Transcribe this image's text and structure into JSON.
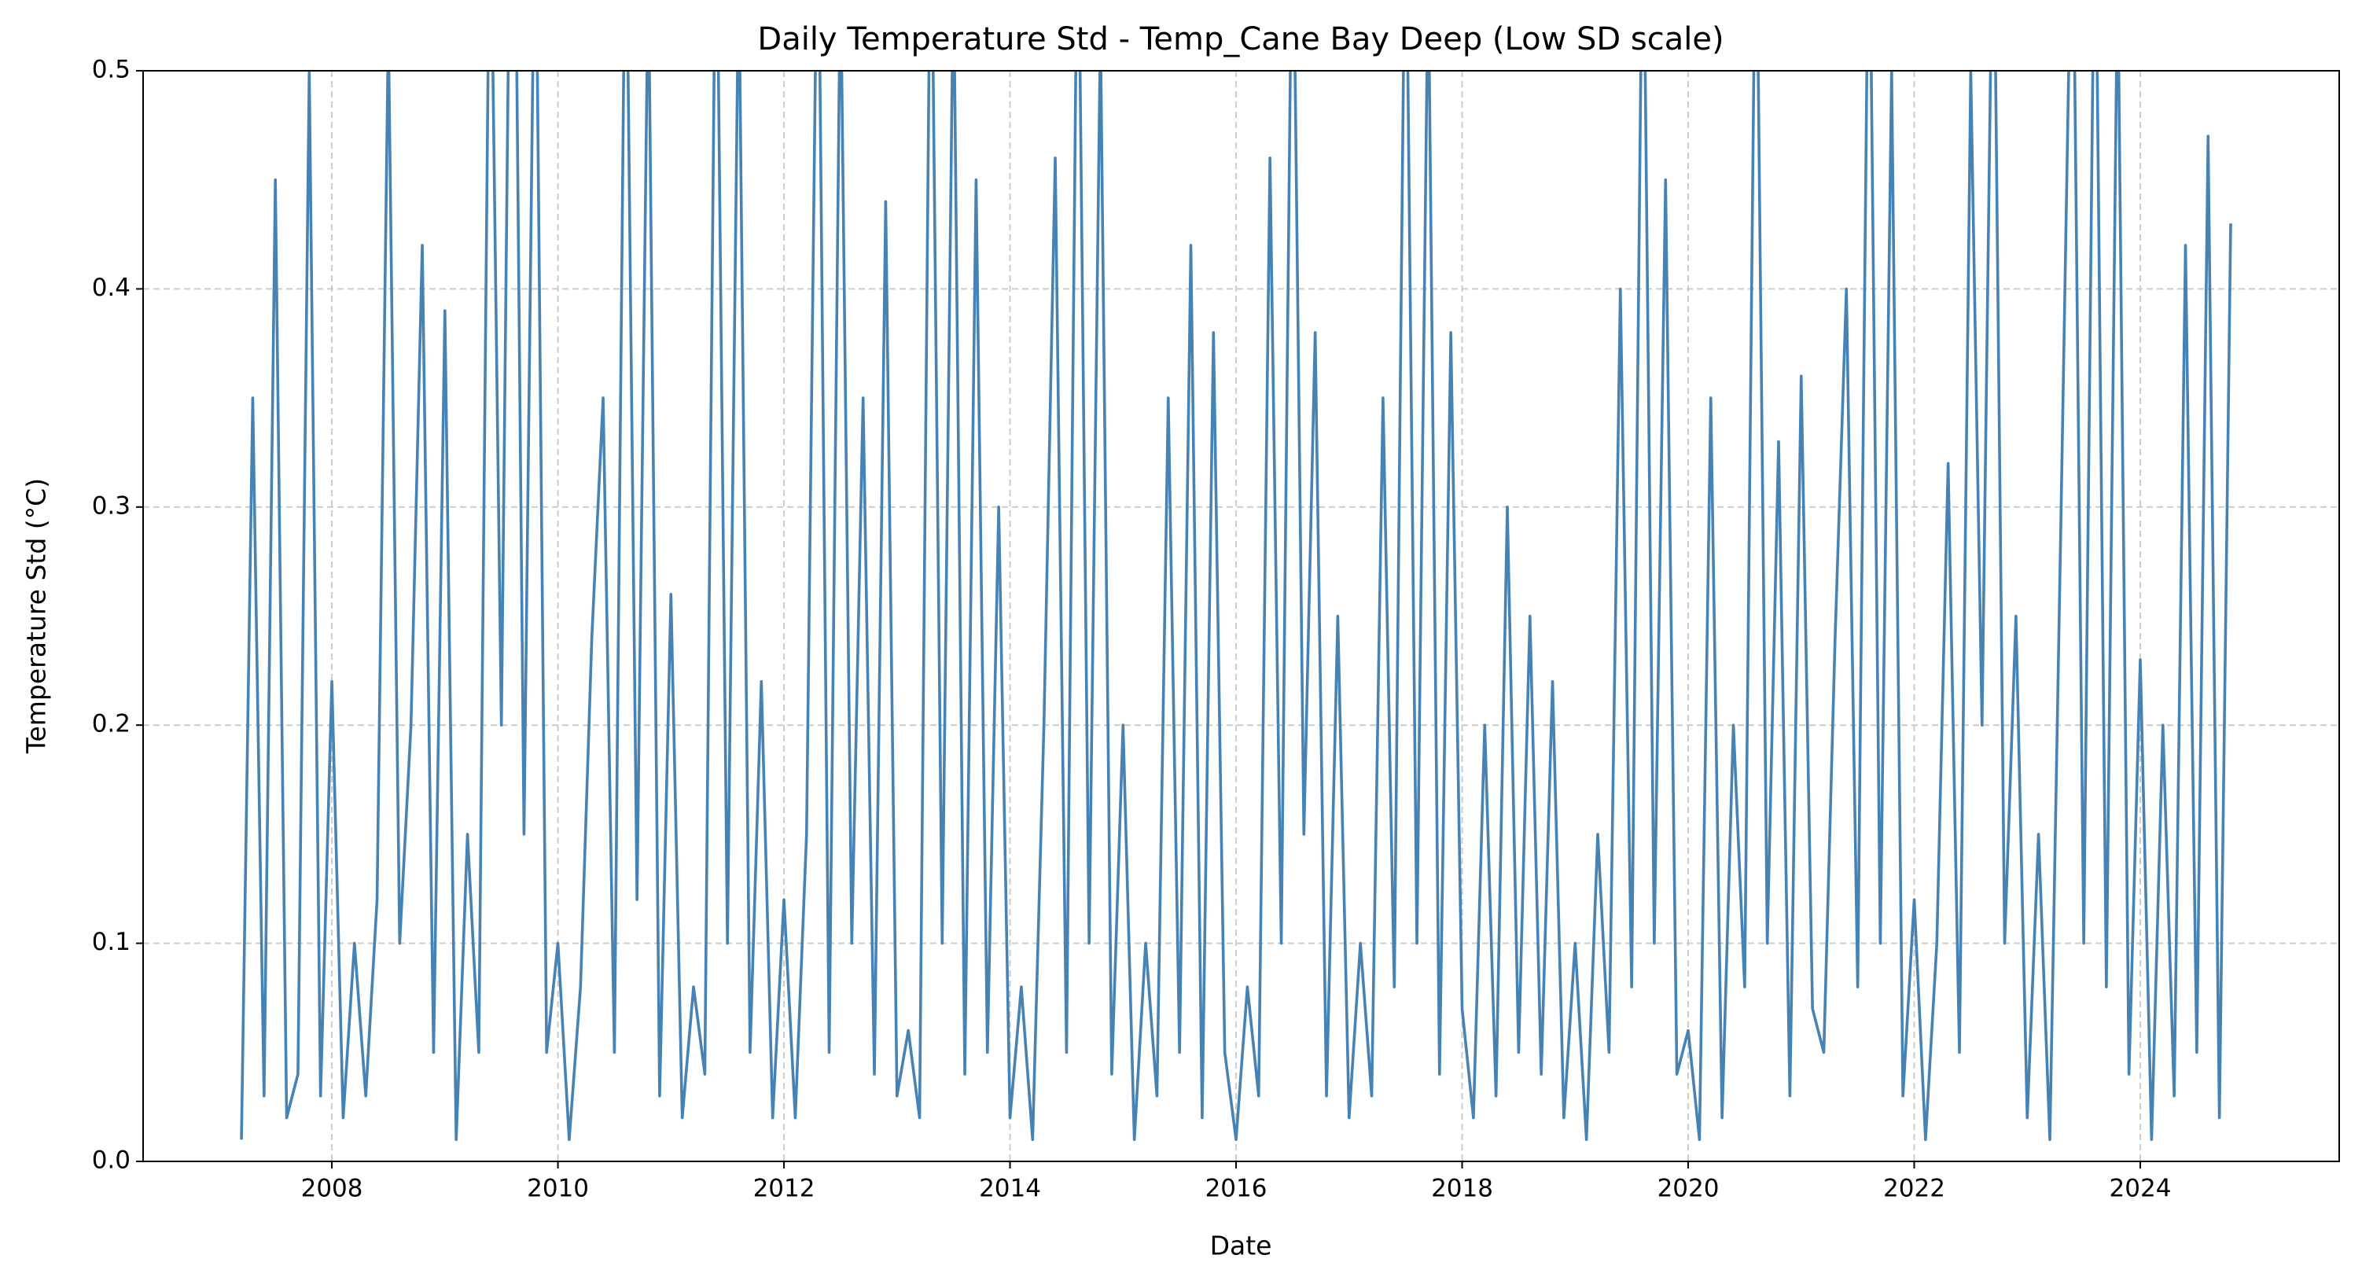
{
  "chart_data": {
    "type": "line",
    "title": "Daily Temperature Std - Temp_Cane Bay Deep (Low SD scale)",
    "x_label": "Date",
    "y_label": "Temperature Std (°C)",
    "color": "#4682b4",
    "grid": true,
    "xlim": [
      2006.33,
      2025.76
    ],
    "xticks": [
      2008,
      2010,
      2012,
      2014,
      2016,
      2018,
      2020,
      2022,
      2024
    ],
    "ylim": [
      0,
      0.5
    ],
    "yticks": [
      {
        "value": 0,
        "label": "0.0"
      },
      0.1,
      0.2,
      0.3,
      0.4,
      0.5
    ],
    "x": [
      2007.2,
      2007.3,
      2007.4,
      2007.5,
      2007.6,
      2007.7,
      2007.8,
      2007.9,
      2008.0,
      2008.1,
      2008.2,
      2008.3,
      2008.4,
      2008.5,
      2008.6,
      2008.7,
      2008.8,
      2008.9,
      2009.0,
      2009.1,
      2009.2,
      2009.3,
      2009.4,
      2009.5,
      2009.6,
      2009.7,
      2009.8,
      2009.9,
      2010.0,
      2010.1,
      2010.2,
      2010.3,
      2010.4,
      2010.5,
      2010.6,
      2010.7,
      2010.8,
      2010.9,
      2011.0,
      2011.1,
      2011.2,
      2011.3,
      2011.4,
      2011.5,
      2011.6,
      2011.7,
      2011.8,
      2011.9,
      2012.0,
      2012.1,
      2012.2,
      2012.3,
      2012.4,
      2012.5,
      2012.6,
      2012.7,
      2012.8,
      2012.9,
      2013.0,
      2013.1,
      2013.2,
      2013.3,
      2013.4,
      2013.5,
      2013.6,
      2013.7,
      2013.8,
      2013.9,
      2014.0,
      2014.1,
      2014.2,
      2014.3,
      2014.4,
      2014.5,
      2014.6,
      2014.7,
      2014.8,
      2014.9,
      2015.0,
      2015.1,
      2015.2,
      2015.3,
      2015.4,
      2015.5,
      2015.6,
      2015.7,
      2015.8,
      2015.9,
      2016.0,
      2016.1,
      2016.2,
      2016.3,
      2016.4,
      2016.5,
      2016.6,
      2016.7,
      2016.8,
      2016.9,
      2017.0,
      2017.1,
      2017.2,
      2017.3,
      2017.4,
      2017.5,
      2017.6,
      2017.7,
      2017.8,
      2017.9,
      2018.0,
      2018.1,
      2018.2,
      2018.3,
      2018.4,
      2018.5,
      2018.6,
      2018.7,
      2018.8,
      2018.9,
      2019.0,
      2019.1,
      2019.2,
      2019.3,
      2019.4,
      2019.5,
      2019.6,
      2019.7,
      2019.8,
      2019.9,
      2020.0,
      2020.1,
      2020.2,
      2020.3,
      2020.4,
      2020.5,
      2020.6,
      2020.7,
      2020.8,
      2020.9,
      2021.0,
      2021.1,
      2021.2,
      2021.3,
      2021.4,
      2021.5,
      2021.6,
      2021.7,
      2021.8,
      2021.9,
      2022.0,
      2022.1,
      2022.2,
      2022.3,
      2022.4,
      2022.5,
      2022.6,
      2022.7,
      2022.8,
      2022.9,
      2023.0,
      2023.1,
      2023.2,
      2023.3,
      2023.4,
      2023.5,
      2023.6,
      2023.7,
      2023.8,
      2023.9,
      2024.0,
      2024.1,
      2024.2,
      2024.3,
      2024.4,
      2024.5,
      2024.6,
      2024.7,
      2024.8
    ],
    "values": [
      0.01,
      0.35,
      0.03,
      0.45,
      0.02,
      0.04,
      0.5,
      0.03,
      0.22,
      0.02,
      0.1,
      0.03,
      0.12,
      0.52,
      0.1,
      0.2,
      0.42,
      0.05,
      0.39,
      0.01,
      0.15,
      0.05,
      0.6,
      0.2,
      0.7,
      0.15,
      0.6,
      0.05,
      0.1,
      0.01,
      0.08,
      0.24,
      0.35,
      0.05,
      0.6,
      0.12,
      0.55,
      0.03,
      0.26,
      0.02,
      0.08,
      0.04,
      0.6,
      0.1,
      0.55,
      0.05,
      0.22,
      0.02,
      0.12,
      0.02,
      0.15,
      0.6,
      0.05,
      0.55,
      0.1,
      0.35,
      0.04,
      0.44,
      0.03,
      0.06,
      0.02,
      0.6,
      0.1,
      0.55,
      0.04,
      0.45,
      0.05,
      0.3,
      0.02,
      0.08,
      0.01,
      0.2,
      0.46,
      0.05,
      0.6,
      0.1,
      0.52,
      0.04,
      0.2,
      0.01,
      0.1,
      0.03,
      0.35,
      0.05,
      0.42,
      0.02,
      0.38,
      0.05,
      0.01,
      0.08,
      0.03,
      0.46,
      0.1,
      0.6,
      0.15,
      0.38,
      0.03,
      0.25,
      0.02,
      0.1,
      0.03,
      0.35,
      0.08,
      0.6,
      0.1,
      0.55,
      0.04,
      0.38,
      0.07,
      0.02,
      0.2,
      0.03,
      0.3,
      0.05,
      0.25,
      0.04,
      0.22,
      0.02,
      0.1,
      0.01,
      0.15,
      0.05,
      0.4,
      0.08,
      0.6,
      0.1,
      0.45,
      0.04,
      0.06,
      0.01,
      0.35,
      0.02,
      0.2,
      0.08,
      0.6,
      0.1,
      0.33,
      0.03,
      0.36,
      0.07,
      0.05,
      0.24,
      0.4,
      0.08,
      0.6,
      0.1,
      0.5,
      0.03,
      0.12,
      0.01,
      0.1,
      0.32,
      0.05,
      0.5,
      0.2,
      0.6,
      0.1,
      0.25,
      0.02,
      0.15,
      0.01,
      0.3,
      0.6,
      0.1,
      0.6,
      0.08,
      0.55,
      0.04,
      0.23,
      0.01,
      0.2,
      0.03,
      0.42,
      0.05,
      0.47,
      0.02,
      0.43
    ]
  }
}
